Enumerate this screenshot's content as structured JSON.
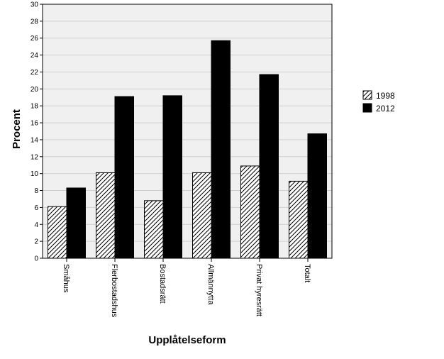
{
  "chart_data": {
    "type": "bar",
    "xlabel": "Upplåtelseform",
    "ylabel": "Procent",
    "categories": [
      "Småhus",
      "Flerbostadshus",
      "Bostadsrätt",
      "Allmännytta",
      "Privat hyresrätt",
      "Totalt"
    ],
    "series": [
      {
        "name": "1998",
        "values": [
          6.1,
          10.1,
          6.8,
          10.1,
          10.9,
          9.1
        ],
        "fill": "hatched"
      },
      {
        "name": "2012",
        "values": [
          8.3,
          19.1,
          19.2,
          25.7,
          21.7,
          14.7
        ],
        "fill": "#000000"
      }
    ],
    "ylim": [
      0,
      30
    ],
    "yticks": [
      "0",
      "2",
      "4",
      "6",
      "8",
      "10",
      "12",
      "14",
      "16",
      "18",
      "20",
      "22",
      "24",
      "26",
      "28",
      "30"
    ],
    "grid": true,
    "legend_position": "right",
    "plot_background": "#f0f0f0"
  }
}
